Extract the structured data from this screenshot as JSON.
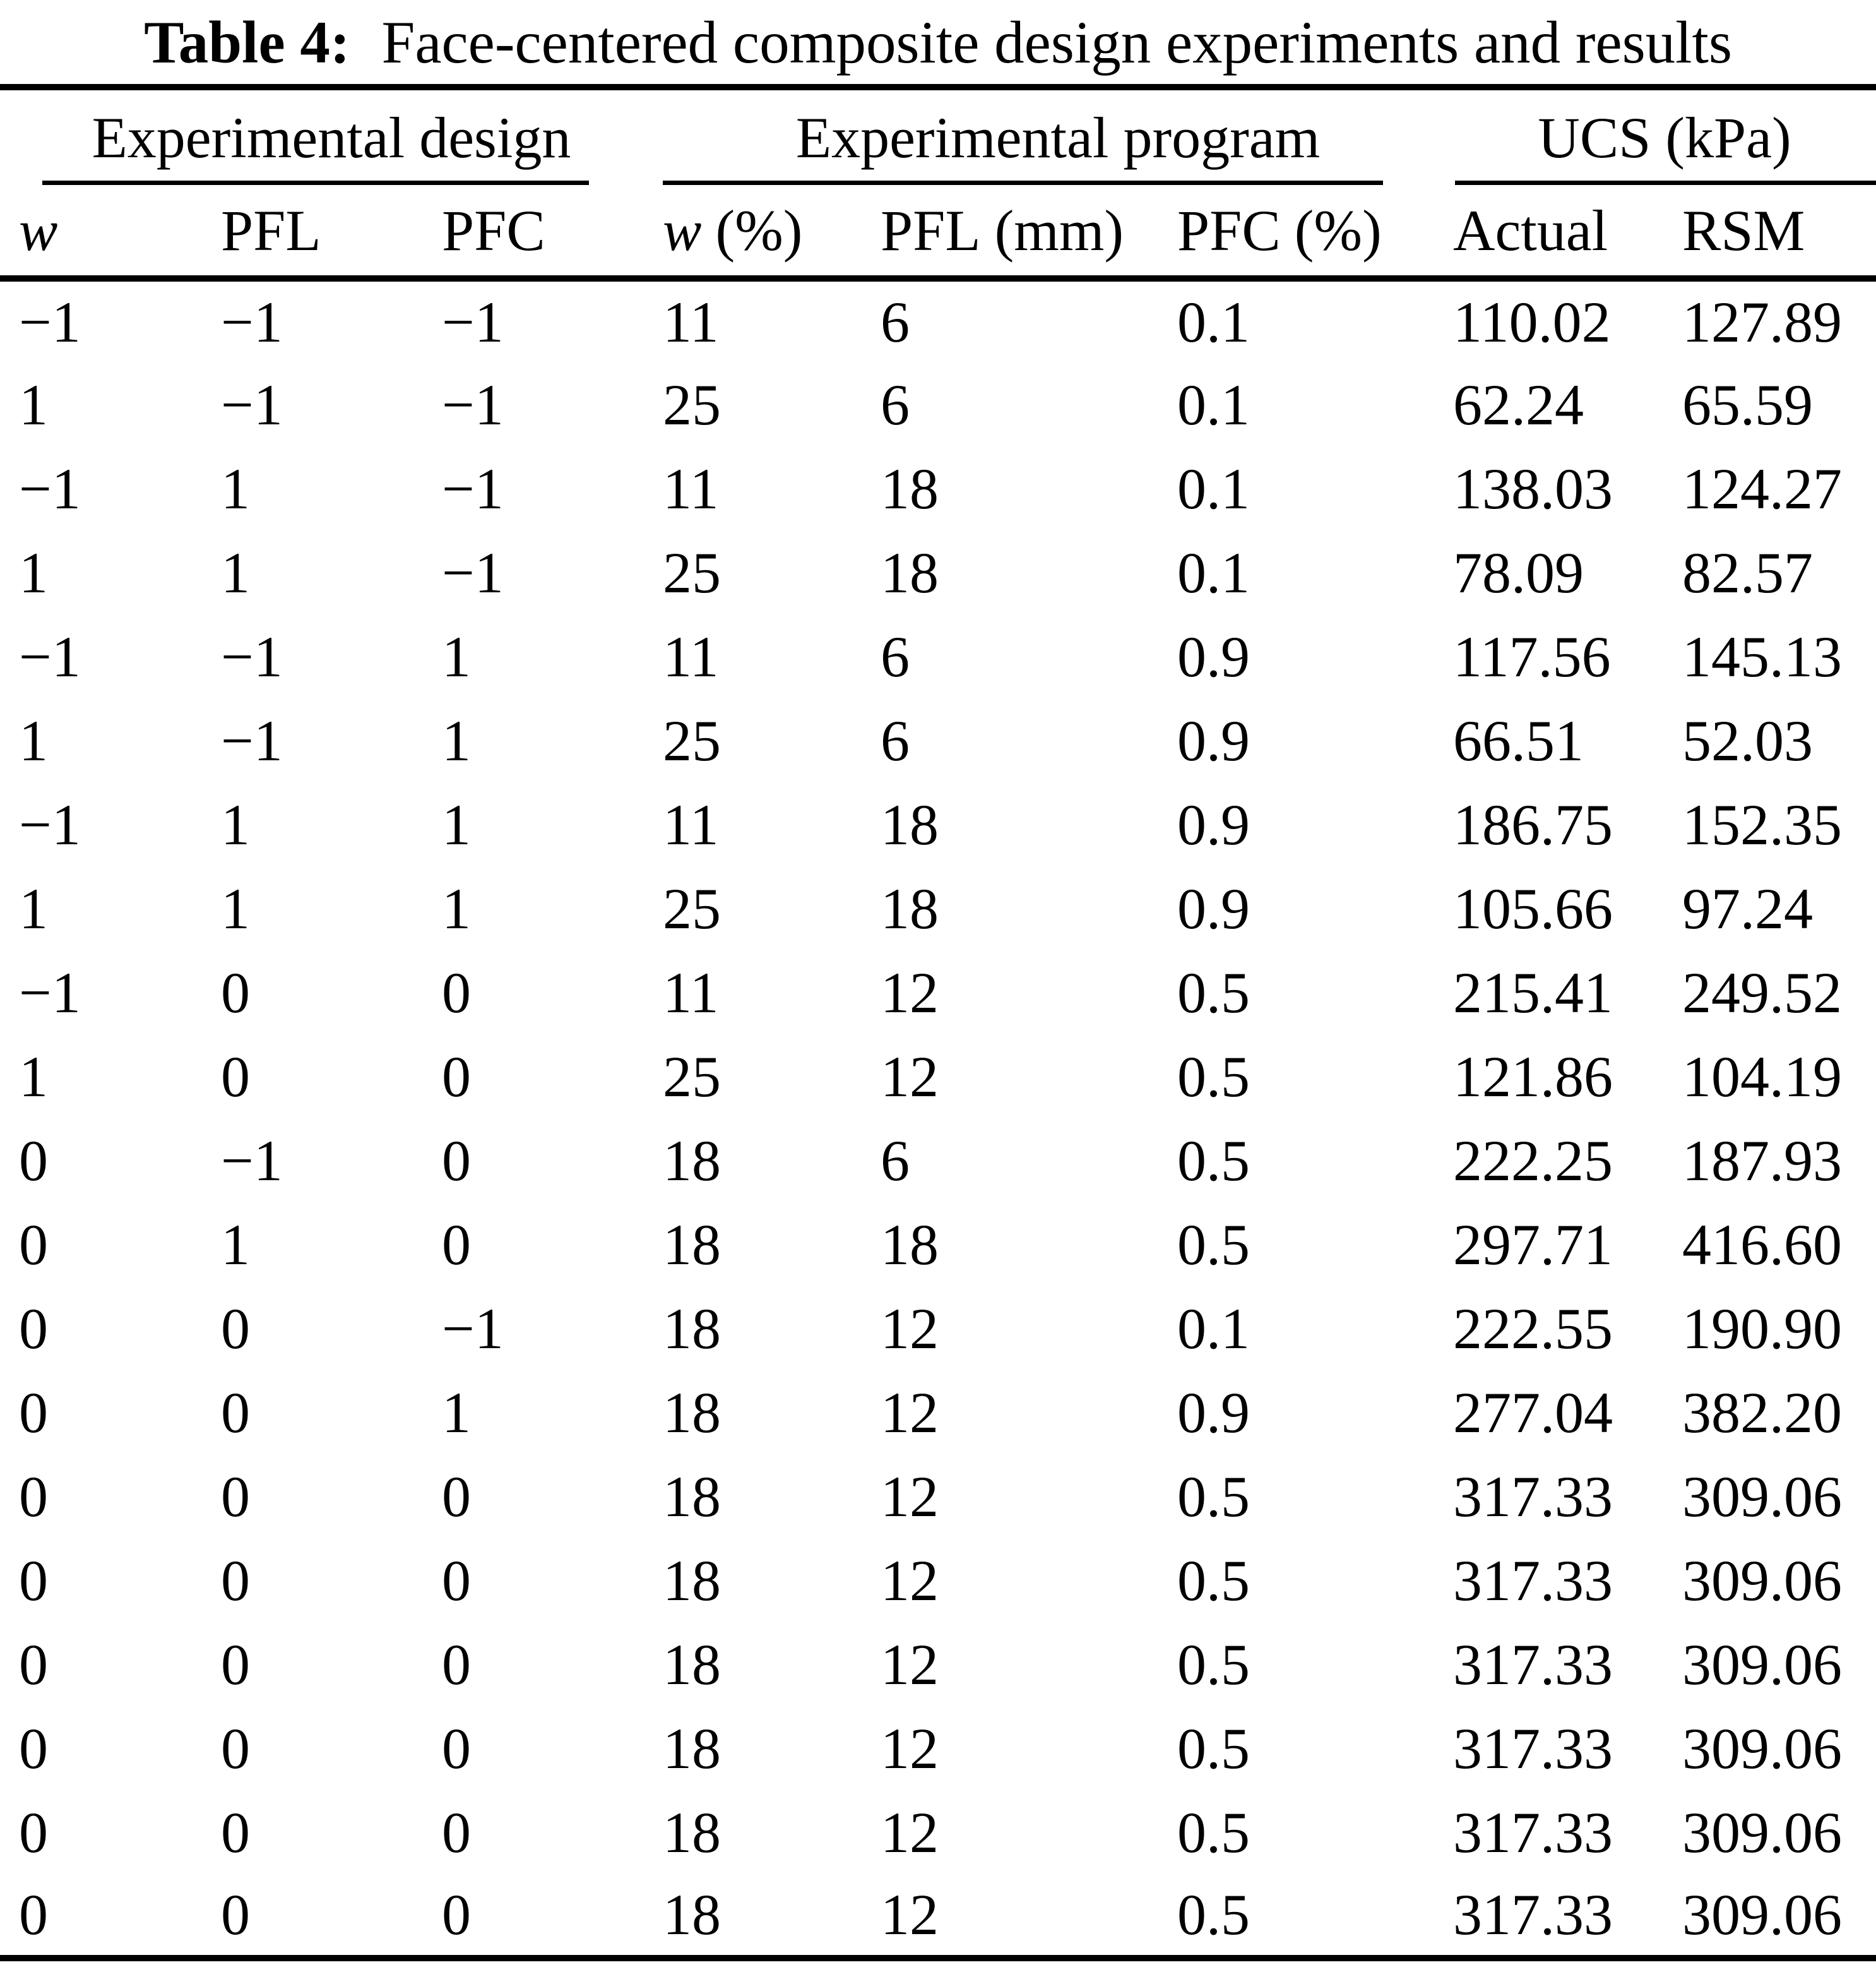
{
  "caption": {
    "label": "Table 4:",
    "text": "Face-centered composite design experiments and results"
  },
  "colors": {
    "background": "#ffffff",
    "text": "#000000",
    "rule": "#000000"
  },
  "table": {
    "column_groups": [
      {
        "label": "Experimental design",
        "span": 3
      },
      {
        "label": "Experimental program",
        "span": 3
      },
      {
        "label": "UCS (kPa)",
        "span": 2
      }
    ],
    "columns": [
      {
        "name": "w",
        "unit": "",
        "italic": true
      },
      {
        "name": "PFL",
        "unit": "",
        "italic": false
      },
      {
        "name": "PFC",
        "unit": "",
        "italic": false
      },
      {
        "name": "w",
        "unit": "(%)",
        "italic": true
      },
      {
        "name": "PFL",
        "unit": "(mm)",
        "italic": false
      },
      {
        "name": "PFC",
        "unit": "(%)",
        "italic": false
      },
      {
        "name": "Actual",
        "unit": "",
        "italic": false
      },
      {
        "name": "RSM",
        "unit": "",
        "italic": false
      }
    ],
    "rows": [
      [
        "−1",
        "−1",
        "−1",
        "11",
        "6",
        "0.1",
        "110.02",
        "127.89"
      ],
      [
        "1",
        "−1",
        "−1",
        "25",
        "6",
        "0.1",
        "62.24",
        "65.59"
      ],
      [
        "−1",
        "1",
        "−1",
        "11",
        "18",
        "0.1",
        "138.03",
        "124.27"
      ],
      [
        "1",
        "1",
        "−1",
        "25",
        "18",
        "0.1",
        "78.09",
        "82.57"
      ],
      [
        "−1",
        "−1",
        "1",
        "11",
        "6",
        "0.9",
        "117.56",
        "145.13"
      ],
      [
        "1",
        "−1",
        "1",
        "25",
        "6",
        "0.9",
        "66.51",
        "52.03"
      ],
      [
        "−1",
        "1",
        "1",
        "11",
        "18",
        "0.9",
        "186.75",
        "152.35"
      ],
      [
        "1",
        "1",
        "1",
        "25",
        "18",
        "0.9",
        "105.66",
        "97.24"
      ],
      [
        "−1",
        "0",
        "0",
        "11",
        "12",
        "0.5",
        "215.41",
        "249.52"
      ],
      [
        "1",
        "0",
        "0",
        "25",
        "12",
        "0.5",
        "121.86",
        "104.19"
      ],
      [
        "0",
        "−1",
        "0",
        "18",
        "6",
        "0.5",
        "222.25",
        "187.93"
      ],
      [
        "0",
        "1",
        "0",
        "18",
        "18",
        "0.5",
        "297.71",
        "416.60"
      ],
      [
        "0",
        "0",
        "−1",
        "18",
        "12",
        "0.1",
        "222.55",
        "190.90"
      ],
      [
        "0",
        "0",
        "1",
        "18",
        "12",
        "0.9",
        "277.04",
        "382.20"
      ],
      [
        "0",
        "0",
        "0",
        "18",
        "12",
        "0.5",
        "317.33",
        "309.06"
      ],
      [
        "0",
        "0",
        "0",
        "18",
        "12",
        "0.5",
        "317.33",
        "309.06"
      ],
      [
        "0",
        "0",
        "0",
        "18",
        "12",
        "0.5",
        "317.33",
        "309.06"
      ],
      [
        "0",
        "0",
        "0",
        "18",
        "12",
        "0.5",
        "317.33",
        "309.06"
      ],
      [
        "0",
        "0",
        "0",
        "18",
        "12",
        "0.5",
        "317.33",
        "309.06"
      ],
      [
        "0",
        "0",
        "0",
        "18",
        "12",
        "0.5",
        "317.33",
        "309.06"
      ]
    ]
  }
}
